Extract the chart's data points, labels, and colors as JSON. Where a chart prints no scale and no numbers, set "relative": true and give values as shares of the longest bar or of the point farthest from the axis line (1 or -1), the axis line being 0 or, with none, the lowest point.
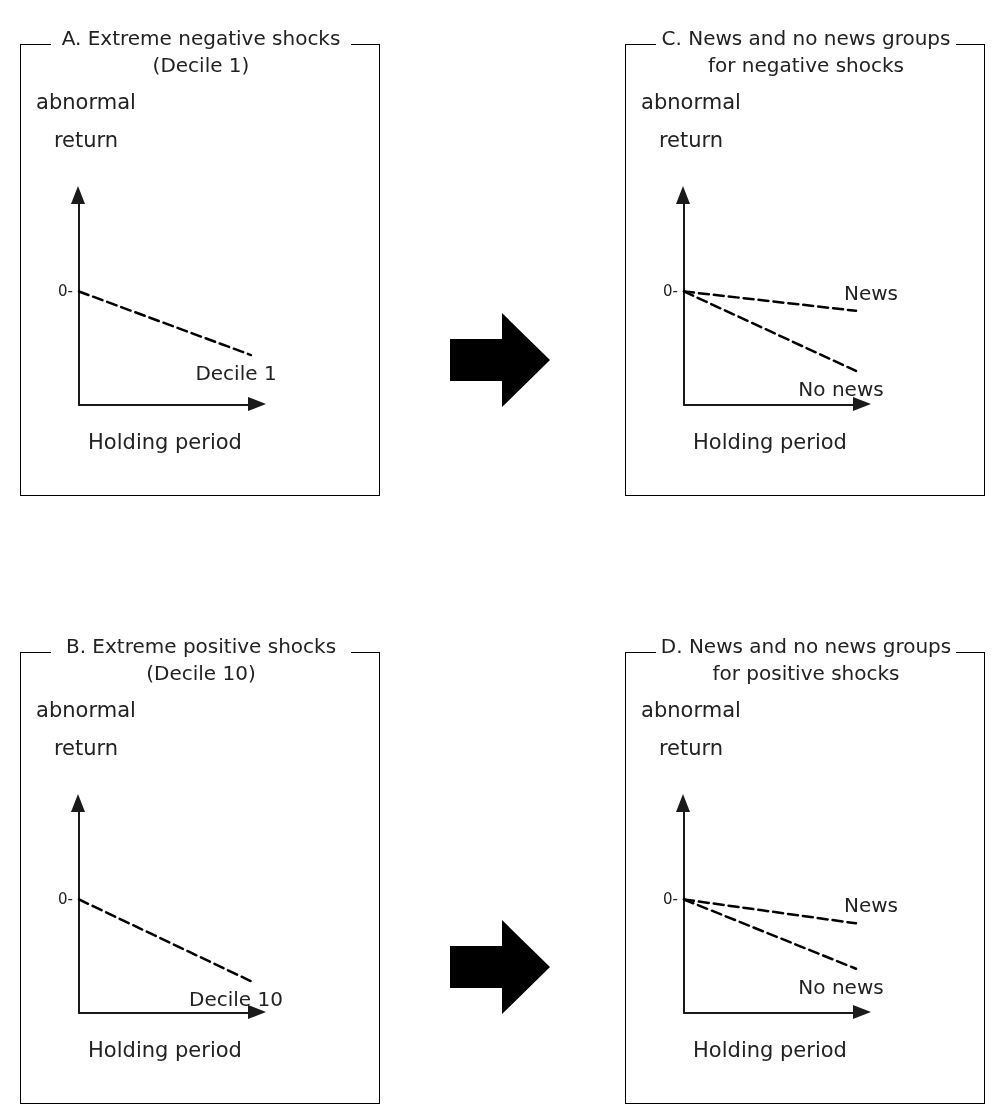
{
  "chart_data": [
    {
      "type": "line",
      "title": "A. Extreme negative shocks (Decile 1)",
      "ylabel": "abnormal return",
      "xlabel": "Holding period",
      "relative": true,
      "categories": [
        null,
        null
      ],
      "line_style": "dashed",
      "marker": "none",
      "annotations": [
        "0-"
      ],
      "series": [
        {
          "name": "Decile 1",
          "color": "#000000",
          "values": [
            1,
            0.44
          ]
        }
      ]
    },
    {
      "type": "line",
      "title": "C. News and no news groups for negative shocks",
      "ylabel": "abnormal return",
      "xlabel": "Holding period",
      "relative": true,
      "categories": [
        null,
        null
      ],
      "line_style": "dashed",
      "marker": "none",
      "annotations": [
        "0-"
      ],
      "series": [
        {
          "name": "News",
          "color": "#000000",
          "values": [
            1,
            0.83
          ]
        },
        {
          "name": "No news",
          "color": "#000000",
          "values": [
            1,
            0.3
          ]
        }
      ]
    },
    {
      "type": "line",
      "title": "B. Extreme positive shocks (Decile 10)",
      "ylabel": "abnormal return",
      "xlabel": "Holding period",
      "relative": true,
      "categories": [
        null,
        null
      ],
      "line_style": "dashed",
      "marker": "none",
      "annotations": [
        "0-"
      ],
      "series": [
        {
          "name": "Decile 10",
          "color": "#000000",
          "values": [
            1,
            0.28
          ]
        }
      ]
    },
    {
      "type": "line",
      "title": "D. News and no news groups for positive shocks",
      "ylabel": "abnormal return",
      "xlabel": "Holding period",
      "relative": true,
      "categories": [
        null,
        null
      ],
      "line_style": "dashed",
      "marker": "none",
      "annotations": [
        "0-"
      ],
      "series": [
        {
          "name": "News",
          "color": "#000000",
          "values": [
            1,
            0.79
          ]
        },
        {
          "name": "No news",
          "color": "#000000",
          "values": [
            1,
            0.39
          ]
        }
      ]
    }
  ]
}
